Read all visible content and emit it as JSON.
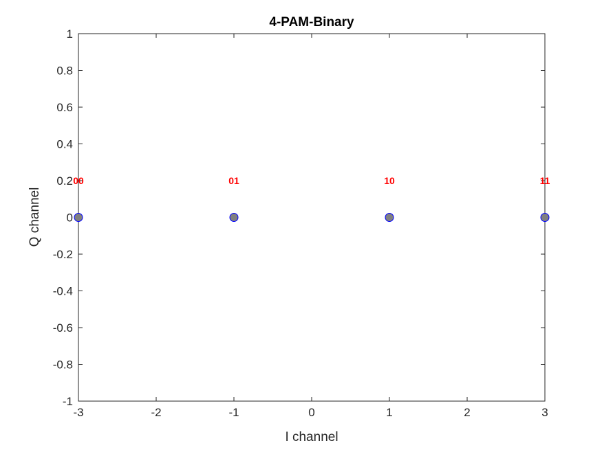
{
  "chart_data": {
    "type": "scatter",
    "title": "4-PAM-Binary",
    "xlabel": "I channel",
    "ylabel": "Q channel",
    "xlim": [
      -3,
      3
    ],
    "ylim": [
      -1,
      1
    ],
    "xticks": [
      -3,
      -2,
      -1,
      0,
      1,
      2,
      3
    ],
    "xtick_labels": [
      "-3",
      "-2",
      "-1",
      "0",
      "1",
      "2",
      "3"
    ],
    "yticks": [
      -1,
      -0.8,
      -0.6,
      -0.4,
      -0.2,
      0,
      0.2,
      0.4,
      0.6,
      0.8,
      1
    ],
    "ytick_labels": [
      "-1",
      "-0.8",
      "-0.6",
      "-0.4",
      "-0.2",
      "0",
      "0.2",
      "0.4",
      "0.6",
      "0.8",
      "1"
    ],
    "grid": false,
    "box": true,
    "points": [
      {
        "x": -3,
        "y": 0,
        "label": "00"
      },
      {
        "x": -1,
        "y": 0,
        "label": "01"
      },
      {
        "x": 1,
        "y": 0,
        "label": "10"
      },
      {
        "x": 3,
        "y": 0,
        "label": "11"
      }
    ],
    "colors": {
      "marker_fill": "#808080",
      "marker_edge": "#0000ff",
      "point_label": "#ff0000",
      "axes": "#262626"
    }
  }
}
